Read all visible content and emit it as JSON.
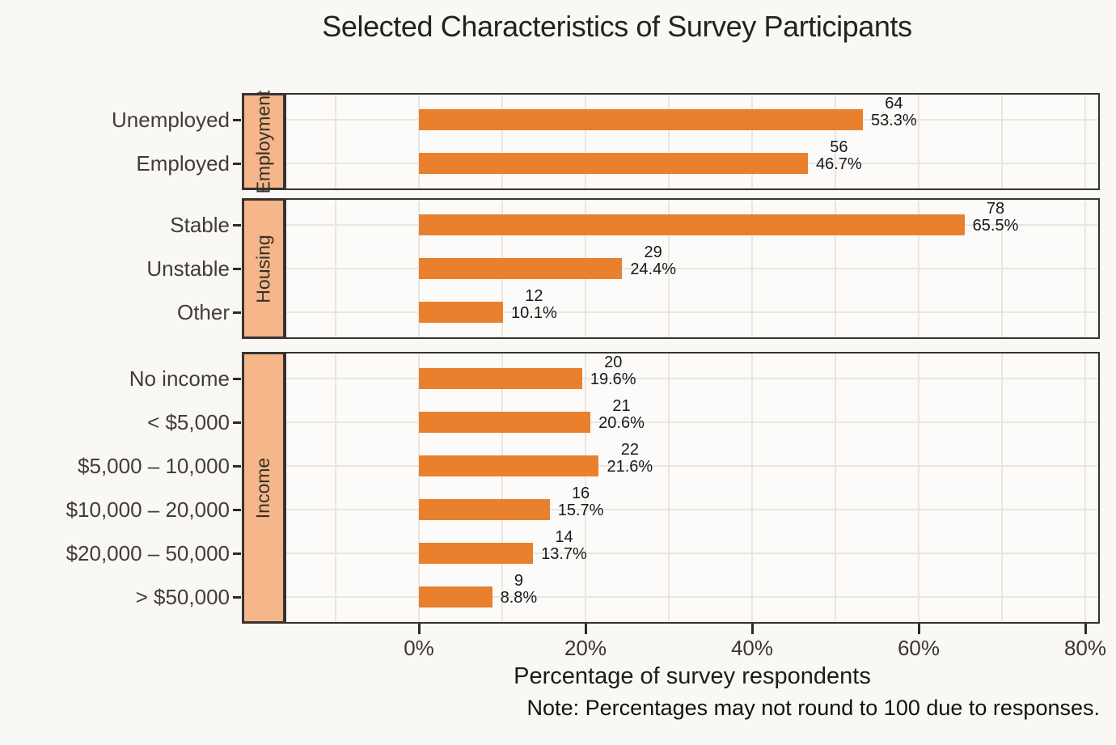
{
  "title": "Selected Characteristics of Survey Participants",
  "xlabel": "Percentage of survey respondents",
  "note": "Note: Percentages may not round to 100 due to responses.",
  "colors": {
    "bar": "#E8802E",
    "strip_fill": "#F5B689",
    "border": "#38332F",
    "grid": "#E9E6E2",
    "panel_bg": "#FCFBF9",
    "page_bg": "#FAF8F5"
  },
  "chart_data": {
    "type": "bar",
    "orientation": "horizontal",
    "title": "Selected Characteristics of Survey Participants",
    "xlabel": "Percentage of survey respondents",
    "x_unit": "percent of survey respondents",
    "xlim": [
      0,
      80
    ],
    "x_tick_values": [
      0,
      20,
      40,
      60,
      80
    ],
    "x_tick_labels": [
      "0%",
      "20%",
      "40%",
      "60%",
      "80%"
    ],
    "x_gridline_step": 10,
    "grid": true,
    "legend": "none",
    "facet_strip_position": "left",
    "groups": [
      {
        "label": "Employment",
        "rows": [
          {
            "category": "Unemployed",
            "count": 64,
            "pct": 53.3,
            "count_label": "64",
            "pct_label": "53.3%"
          },
          {
            "category": "Employed",
            "count": 56,
            "pct": 46.7,
            "count_label": "56",
            "pct_label": "46.7%"
          }
        ]
      },
      {
        "label": "Housing",
        "rows": [
          {
            "category": "Stable",
            "count": 78,
            "pct": 65.5,
            "count_label": "78",
            "pct_label": "65.5%"
          },
          {
            "category": "Unstable",
            "count": 29,
            "pct": 24.4,
            "count_label": "29",
            "pct_label": "24.4%"
          },
          {
            "category": "Other",
            "count": 12,
            "pct": 10.1,
            "count_label": "12",
            "pct_label": "10.1%"
          }
        ]
      },
      {
        "label": "Income",
        "rows": [
          {
            "category": "No income",
            "count": 20,
            "pct": 19.6,
            "count_label": "20",
            "pct_label": "19.6%"
          },
          {
            "category": "< $5,000",
            "count": 21,
            "pct": 20.6,
            "count_label": "21",
            "pct_label": "20.6%"
          },
          {
            "category": "$5,000 – 10,000",
            "count": 22,
            "pct": 21.6,
            "count_label": "22",
            "pct_label": "21.6%"
          },
          {
            "category": "$10,000 – 20,000",
            "count": 16,
            "pct": 15.7,
            "count_label": "16",
            "pct_label": "15.7%"
          },
          {
            "category": "$20,000 – 50,000",
            "count": 14,
            "pct": 13.7,
            "count_label": "14",
            "pct_label": "13.7%"
          },
          {
            "category": "> $50,000",
            "count": 9,
            "pct": 8.8,
            "count_label": "9",
            "pct_label": "8.8%"
          }
        ]
      }
    ]
  }
}
